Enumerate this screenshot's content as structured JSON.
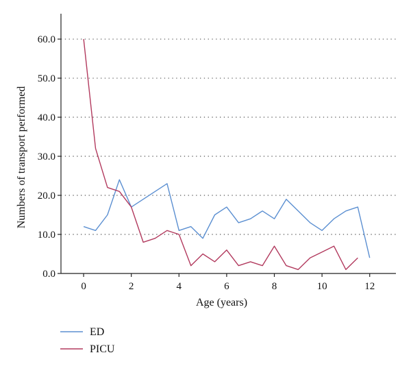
{
  "chart_data": {
    "type": "line",
    "xlabel": "Age (years)",
    "ylabel": "Numbers of transport performed",
    "xlim": [
      -0.95,
      13.1
    ],
    "ylim": [
      0,
      66.5
    ],
    "x_ticks": [
      "0",
      "2",
      "4",
      "6",
      "8",
      "10",
      "12"
    ],
    "y_ticks": [
      "0.0",
      "10.0",
      "20.0",
      "30.0",
      "40.0",
      "50.0",
      "60.0"
    ],
    "grid": "horizontal dotted",
    "legend_position": "bottom-left, below plot",
    "series": [
      {
        "name": "ED",
        "color": "#5b8fd1",
        "x": [
          0,
          0.5,
          1,
          1.5,
          2,
          2.5,
          3,
          3.5,
          4,
          4.5,
          5,
          5.5,
          6,
          6.5,
          7,
          7.5,
          8,
          8.5,
          9,
          9.5,
          10,
          10.5,
          11,
          11.5,
          12
        ],
        "values": [
          12,
          11,
          15,
          24,
          17,
          19,
          21,
          23,
          11,
          12,
          9,
          15,
          17,
          13,
          14,
          16,
          14,
          19,
          16,
          13,
          11,
          14,
          16,
          17,
          4
        ]
      },
      {
        "name": "PICU",
        "color": "#b23a5e",
        "x": [
          0,
          0.5,
          1,
          1.5,
          2,
          2.5,
          3,
          3.5,
          4,
          4.5,
          5,
          5.5,
          6,
          6.5,
          7,
          7.5,
          8,
          8.5,
          9,
          9.5,
          10,
          10.5,
          11,
          11.5
        ],
        "values": [
          60,
          32,
          22,
          21,
          17,
          8,
          9,
          11,
          10,
          2,
          5,
          3,
          6,
          2,
          3,
          2,
          7,
          2,
          1,
          4,
          5.5,
          7,
          1,
          4
        ]
      }
    ]
  }
}
